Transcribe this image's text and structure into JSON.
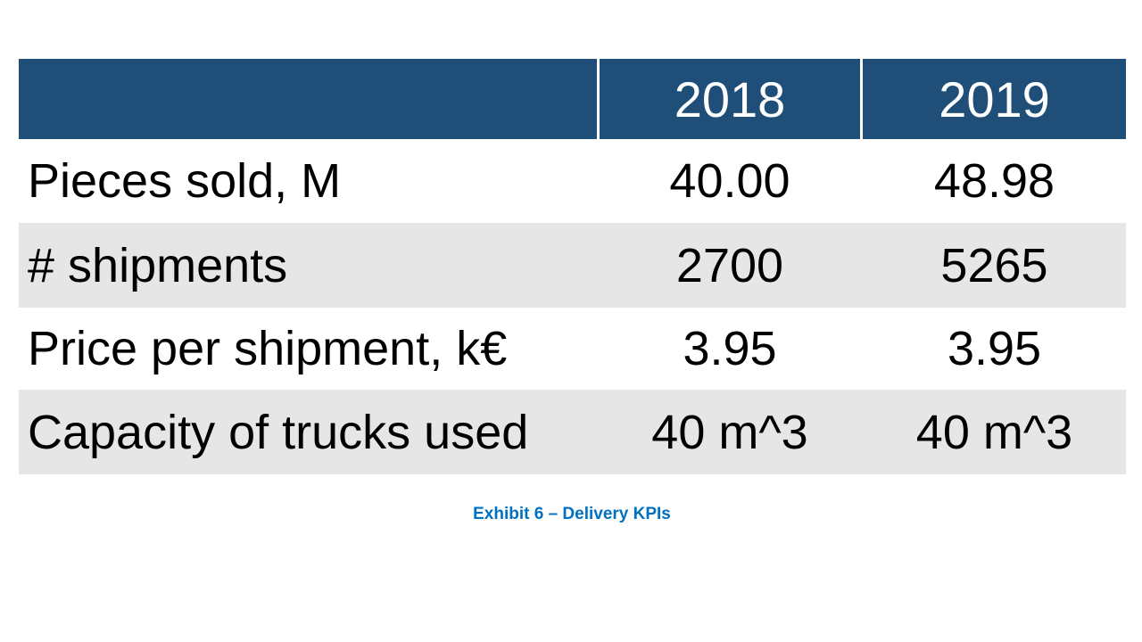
{
  "table": {
    "header": [
      "2018",
      "2019"
    ],
    "rows": [
      [
        "Pieces sold, M",
        "40.00",
        "48.98"
      ],
      [
        "# shipments",
        "2700",
        "5265"
      ],
      [
        "Price per shipment, k€",
        "3.95",
        "3.95"
      ],
      [
        "Capacity of trucks used",
        "40 m^3",
        "40 m^3"
      ]
    ]
  },
  "caption": "Exhibit 6 – Delivery KPIs"
}
